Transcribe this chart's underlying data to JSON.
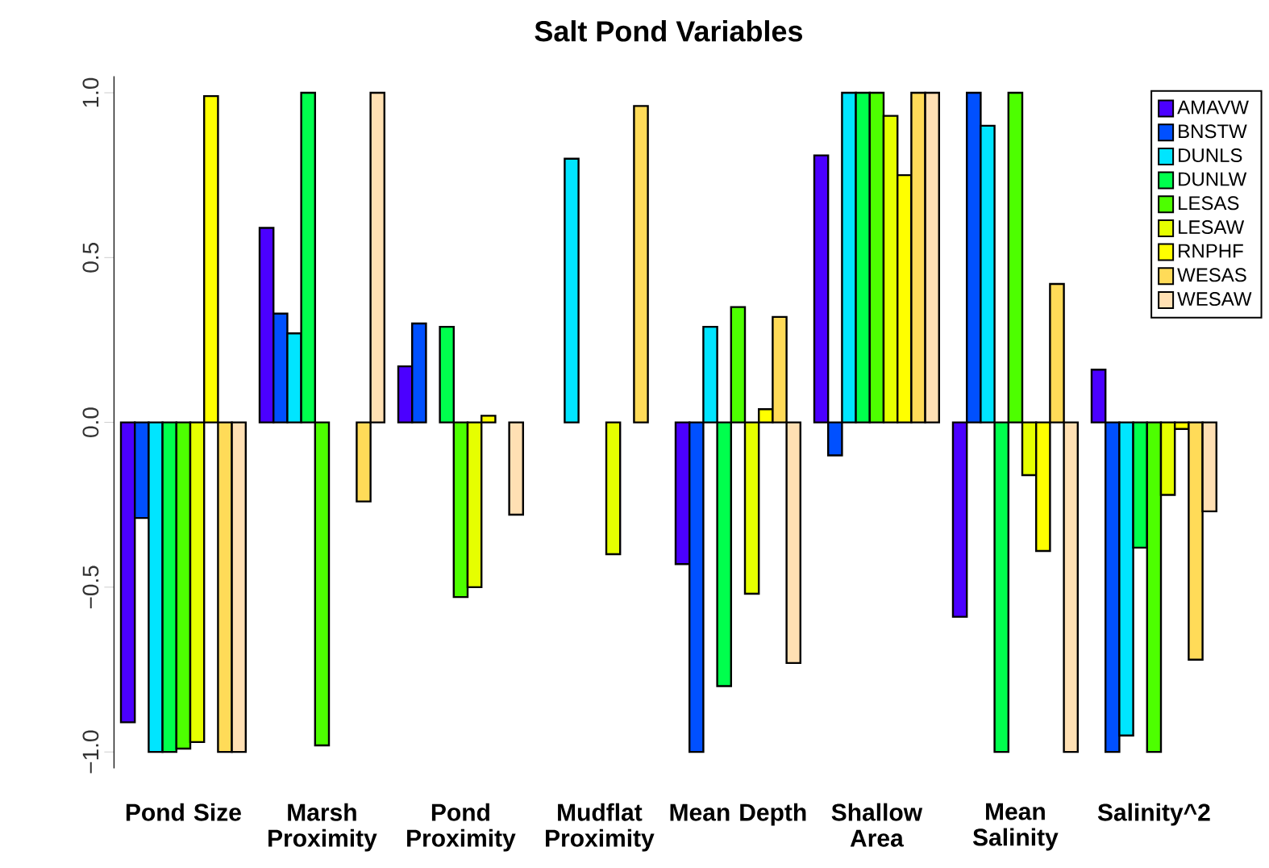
{
  "chart_data": {
    "type": "bar",
    "title": "Salt Pond Variables",
    "categories": [
      "Pond Size",
      "Marsh Proximity",
      "Pond Proximity",
      "Mudflat Proximity",
      "Mean Depth",
      "Shallow Area",
      "Mean Salinity",
      "Salinity^2"
    ],
    "series": [
      {
        "name": "AMAVW",
        "color": "#4b00ff",
        "values": [
          -0.91,
          0.59,
          0.17,
          0,
          -0.43,
          0.81,
          -0.59,
          0.16
        ]
      },
      {
        "name": "BNSTW",
        "color": "#0050ff",
        "values": [
          -0.29,
          0.33,
          0.3,
          0,
          -1,
          -0.1,
          1,
          -1
        ]
      },
      {
        "name": "DUNLS",
        "color": "#00e5ff",
        "values": [
          -1,
          0.27,
          0,
          0.8,
          0.29,
          1,
          0.9,
          -0.95
        ]
      },
      {
        "name": "DUNLW",
        "color": "#00ff4d",
        "values": [
          -1,
          1,
          0.29,
          0,
          -0.8,
          1,
          -1,
          -0.38
        ]
      },
      {
        "name": "LESAS",
        "color": "#4dff00",
        "values": [
          -0.99,
          -0.98,
          -0.53,
          0,
          0.35,
          1,
          1,
          -1
        ]
      },
      {
        "name": "LESAW",
        "color": "#e6ff00",
        "values": [
          -0.97,
          0,
          -0.5,
          -0.4,
          -0.52,
          0.93,
          -0.16,
          -0.22
        ]
      },
      {
        "name": "RNPHF",
        "color": "#ffff00",
        "values": [
          0.99,
          0,
          0.02,
          0,
          0.04,
          0.75,
          -0.39,
          -0.02
        ]
      },
      {
        "name": "WESAS",
        "color": "#ffdb58",
        "values": [
          -1,
          -0.24,
          0,
          0.96,
          0.32,
          1,
          0.42,
          -0.72
        ]
      },
      {
        "name": "WESAW",
        "color": "#ffe0b3",
        "values": [
          -1,
          1,
          -0.28,
          0,
          -0.73,
          1,
          -1,
          -0.27
        ]
      }
    ],
    "ylim": [
      -1.05,
      1.05
    ],
    "yticks": [
      {
        "value": -1,
        "label": "−1.0"
      },
      {
        "value": -0.5,
        "label": "−0.5"
      },
      {
        "value": 0,
        "label": "0.0"
      },
      {
        "value": 0.5,
        "label": "0.5"
      },
      {
        "value": 1,
        "label": "1.0"
      }
    ],
    "legend": "top right"
  }
}
